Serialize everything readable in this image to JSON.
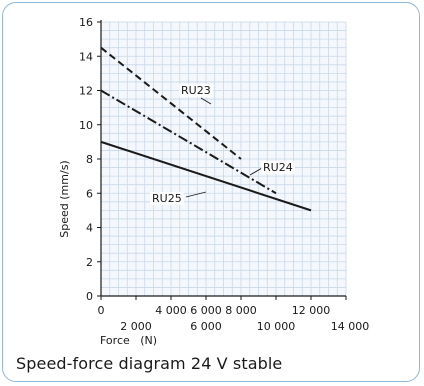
{
  "caption": "Speed-force diagram 24 V stable",
  "chart_data": {
    "type": "line",
    "xlabel": "Force   (N)",
    "ylabel": "Speed   (mm/s)",
    "xlim": [
      0,
      14000
    ],
    "ylim": [
      0,
      16
    ],
    "x_ticks_upper": [
      "0",
      "4 000",
      "6 000",
      "8 000",
      "12 000"
    ],
    "x_ticks_upper_values": [
      0,
      4000,
      6000,
      8000,
      12000
    ],
    "x_ticks_lower": [
      "2 000",
      "6 000",
      "10 000",
      "14 000"
    ],
    "x_ticks_lower_values": [
      2000,
      6000,
      10000,
      14000
    ],
    "y_ticks": [
      "0",
      "2",
      "4",
      "6",
      "8",
      "10",
      "12",
      "14",
      "16"
    ],
    "y_ticks_values": [
      0,
      2,
      4,
      6,
      8,
      10,
      12,
      14,
      16
    ],
    "grid": true,
    "series": [
      {
        "name": "RU23",
        "style": "dashed",
        "color": "#1a1a1a",
        "x": [
          0,
          8000
        ],
        "y": [
          14.5,
          8.0
        ]
      },
      {
        "name": "RU24",
        "style": "dashdot",
        "color": "#1a1a1a",
        "x": [
          0,
          10000
        ],
        "y": [
          12.0,
          6.0
        ]
      },
      {
        "name": "RU25",
        "style": "solid",
        "color": "#1a1a1a",
        "x": [
          0,
          12000
        ],
        "y": [
          9.0,
          5.0
        ]
      }
    ],
    "grid_color": "#c9d8e8"
  }
}
